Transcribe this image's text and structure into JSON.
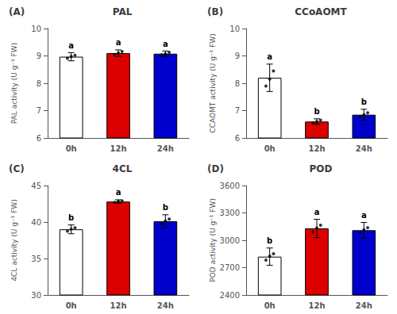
{
  "chart_data": [
    {
      "type": "bar",
      "title": "PAL",
      "panel_label": "(A)",
      "ylabel": "PAL activity (U g⁻¹ FW)",
      "categories": [
        "0h",
        "12h",
        "24h"
      ],
      "values": [
        8.97,
        9.1,
        9.08
      ],
      "errors": [
        0.15,
        0.12,
        0.1
      ],
      "dots": [
        [
          8.91,
          9.02,
          8.98
        ],
        [
          9.05,
          9.16,
          9.11
        ],
        [
          9.04,
          9.13,
          9.07
        ]
      ],
      "annotations": [
        "a",
        "a",
        "a"
      ],
      "colors": [
        "white",
        "#DD0000",
        "#0000CC"
      ],
      "ylim": [
        6,
        10
      ],
      "yticks": [
        6,
        7,
        8,
        9,
        10
      ],
      "grid": false
    },
    {
      "type": "bar",
      "title": "CCoAOMT",
      "panel_label": "(B)",
      "ylabel": "CCAOMT activity (U g⁻¹ FW)",
      "categories": [
        "0h",
        "12h",
        "24h"
      ],
      "values": [
        8.2,
        6.6,
        6.85
      ],
      "errors": [
        0.5,
        0.1,
        0.2
      ],
      "dots": [
        [
          7.9,
          8.45,
          8.15
        ],
        [
          6.55,
          6.65,
          6.6
        ],
        [
          6.77,
          6.92,
          6.85
        ]
      ],
      "annotations": [
        "a",
        "b",
        "b"
      ],
      "colors": [
        "white",
        "#DD0000",
        "#0000CC"
      ],
      "ylim": [
        6,
        10
      ],
      "yticks": [
        6,
        7,
        8,
        9,
        10
      ],
      "grid": false
    },
    {
      "type": "bar",
      "title": "4CL",
      "panel_label": "(C)",
      "ylabel": "4CL activity (U g⁻¹ FW)",
      "categories": [
        "0h",
        "12h",
        "24h"
      ],
      "values": [
        39.0,
        42.8,
        40.1
      ],
      "errors": [
        0.6,
        0.25,
        0.9
      ],
      "dots": [
        [
          38.75,
          39.22,
          39.03
        ],
        [
          42.68,
          42.9,
          42.82
        ],
        [
          39.75,
          40.4,
          40.15
        ]
      ],
      "annotations": [
        "b",
        "a",
        "b"
      ],
      "colors": [
        "white",
        "#DD0000",
        "#0000CC"
      ],
      "ylim": [
        30,
        45
      ],
      "yticks": [
        30,
        35,
        40,
        45
      ],
      "grid": false
    },
    {
      "type": "bar",
      "title": "POD",
      "panel_label": "(D)",
      "ylabel": "POD activity (U g⁻¹ FW)",
      "categories": [
        "0h",
        "12h",
        "24h"
      ],
      "values": [
        2820,
        3130,
        3110
      ],
      "errors": [
        95,
        100,
        85
      ],
      "dots": [
        [
          2782,
          2852,
          2826
        ],
        [
          3090,
          3165,
          3135
        ],
        [
          3076,
          3138,
          3116
        ]
      ],
      "annotations": [
        "b",
        "a",
        "a"
      ],
      "colors": [
        "white",
        "#DD0000",
        "#0000CC"
      ],
      "ylim": [
        2400,
        3600
      ],
      "yticks": [
        2400,
        2700,
        3000,
        3300,
        3600
      ],
      "grid": false
    }
  ]
}
